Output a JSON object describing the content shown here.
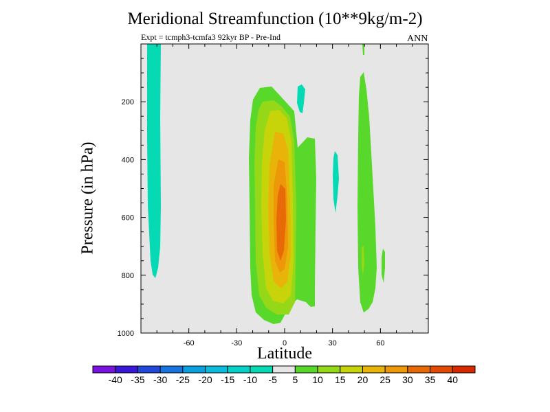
{
  "chart_data": {
    "type": "contour",
    "title": "Meridional Streamfunction (10**9kg/m-2)",
    "subtitle": "Expt = tcmph3-tcmfa3     92kyr BP - Pre-Ind",
    "season": "ANN",
    "xlabel": "Latitude",
    "ylabel": "Pressure (in hPa)",
    "xlim": [
      -90,
      90
    ],
    "ylim": [
      1000,
      0
    ],
    "x_ticks": [
      -60,
      -30,
      0,
      30,
      60
    ],
    "y_ticks": [
      200,
      400,
      600,
      800,
      1000
    ],
    "colorbar": {
      "levels": [
        -40,
        -35,
        -30,
        -25,
        -20,
        -15,
        -10,
        -5,
        5,
        10,
        15,
        20,
        25,
        30,
        35,
        40
      ],
      "colors": [
        "#7a12e0",
        "#3a18d8",
        "#2248dc",
        "#1a74e0",
        "#0ca0e0",
        "#0cbcdc",
        "#06d2c8",
        "#06dab4",
        "#e6e6e6",
        "#58d82a",
        "#94d818",
        "#c8d40a",
        "#e8b40a",
        "#ec9808",
        "#e86a06",
        "#e44a04",
        "#d82a00"
      ]
    },
    "features": [
      {
        "name": "negative band near 75S",
        "level_range": [
          -10,
          -5
        ],
        "lat": [
          -83,
          -75
        ],
        "pressure": [
          0,
          800
        ]
      },
      {
        "name": "main positive cell",
        "max_level_range": [
          30,
          35
        ],
        "lat": [
          -22,
          20
        ],
        "pressure": [
          150,
          970
        ],
        "core_lat": 0,
        "core_pressure": 650
      },
      {
        "name": "small negative cell",
        "level_range": [
          -10,
          -5
        ],
        "lat": [
          8,
          11
        ],
        "pressure": [
          180,
          260
        ]
      },
      {
        "name": "small negative cell",
        "level_range": [
          -10,
          -5
        ],
        "lat": [
          30,
          33
        ],
        "pressure": [
          380,
          560
        ]
      },
      {
        "name": "positive band near 50N",
        "level_range": [
          5,
          10
        ],
        "lat": [
          45,
          54
        ],
        "pressure": [
          120,
          920
        ]
      },
      {
        "name": "small positive cell",
        "level_range": [
          5,
          10
        ],
        "lat": [
          59,
          61
        ],
        "pressure": [
          710,
          820
        ]
      }
    ]
  }
}
